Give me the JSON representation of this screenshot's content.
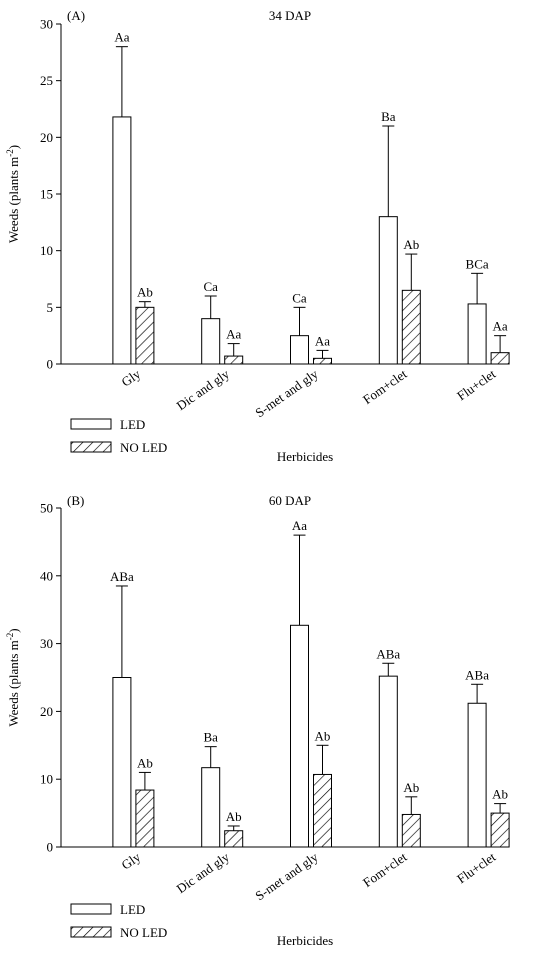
{
  "chart_data": [
    {
      "type": "bar",
      "panel": "(A)",
      "title": "34 DAP",
      "ylabel": "Weeds (plants m-2)",
      "ylabel_main": "Weeds (plants m",
      "ylabel_sup": "-2",
      "ylabel_close": ")",
      "xlabel": "Herbicides",
      "ylim": [
        0,
        30
      ],
      "yticks": [
        0,
        5,
        10,
        15,
        20,
        25,
        30
      ],
      "categories": [
        "Gly",
        "Dic and gly",
        "S-met and gly",
        "Fom+clet",
        "Flu+clet"
      ],
      "legend": {
        "placement": "bottom-left",
        "entries": [
          "LED",
          "NO LED"
        ]
      },
      "series": [
        {
          "name": "LED",
          "pattern": "open",
          "values": [
            21.8,
            4.0,
            2.5,
            13.0,
            5.3
          ],
          "error": [
            6.2,
            2.0,
            2.5,
            8.0,
            2.7
          ],
          "letters": [
            "Aa",
            "Ca",
            "Ca",
            "Ba",
            "BCa"
          ]
        },
        {
          "name": "NO LED",
          "pattern": "hatched",
          "values": [
            5.0,
            0.7,
            0.5,
            6.5,
            1.0
          ],
          "error": [
            0.5,
            1.1,
            0.7,
            3.2,
            1.5
          ],
          "letters": [
            "Ab",
            "Aa",
            "Aa",
            "Ab",
            "Aa"
          ]
        }
      ]
    },
    {
      "type": "bar",
      "panel": "(B)",
      "title": "60 DAP",
      "ylabel": "Weeds (plants m-2)",
      "ylabel_main": "Weeds (plants m",
      "ylabel_sup": "-2",
      "ylabel_close": ")",
      "xlabel": "Herbicides",
      "ylim": [
        0,
        50
      ],
      "yticks": [
        0,
        10,
        20,
        30,
        40,
        50
      ],
      "categories": [
        "Gly",
        "Dic and gly",
        "S-met and gly",
        "Fom+clet",
        "Flu+clet"
      ],
      "legend": {
        "placement": "bottom-left",
        "entries": [
          "LED",
          "NO LED"
        ]
      },
      "series": [
        {
          "name": "LED",
          "pattern": "open",
          "values": [
            25.0,
            11.7,
            32.7,
            25.2,
            21.2
          ],
          "error": [
            13.5,
            3.1,
            13.3,
            1.9,
            2.8
          ],
          "letters": [
            "ABa",
            "Ba",
            "Aa",
            "ABa",
            "ABa"
          ]
        },
        {
          "name": "NO LED",
          "pattern": "hatched",
          "values": [
            8.4,
            2.4,
            10.7,
            4.8,
            5.0
          ],
          "error": [
            2.6,
            0.7,
            4.3,
            2.6,
            1.4
          ],
          "letters": [
            "Ab",
            "Ab",
            "Ab",
            "Ab",
            "Ab"
          ]
        }
      ]
    }
  ]
}
